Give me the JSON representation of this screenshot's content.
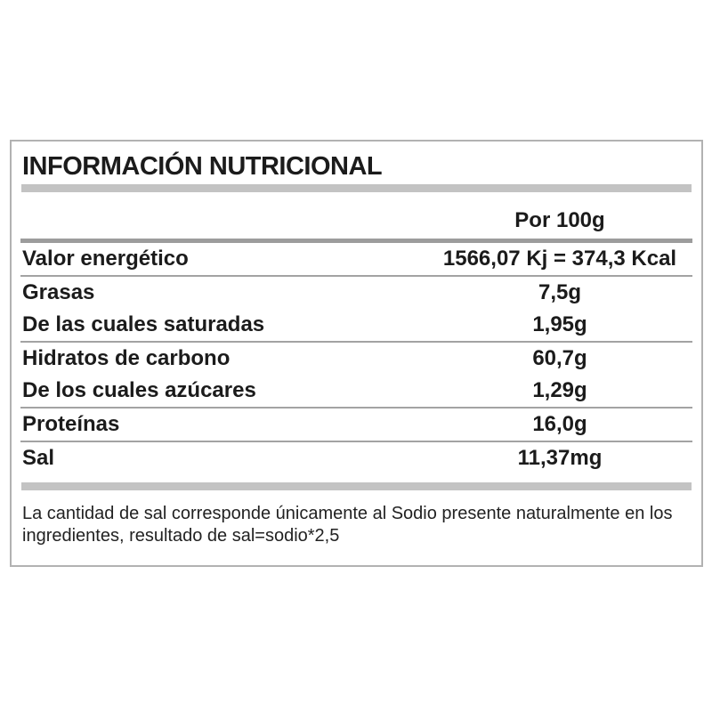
{
  "label": {
    "title": "INFORMACIÓN NUTRICIONAL",
    "column_header": "Por 100g",
    "rows": [
      {
        "name": "Valor energético",
        "value": "1566,07 Kj = 374,3 Kcal"
      },
      {
        "name": "Grasas",
        "value": "7,5g"
      },
      {
        "name": "De las cuales saturadas",
        "value": "1,95g"
      },
      {
        "name": "Hidratos de carbono",
        "value": "60,7g"
      },
      {
        "name": "De los cuales azúcares",
        "value": "1,29g"
      },
      {
        "name": "Proteínas",
        "value": "16,0g"
      },
      {
        "name": "Sal",
        "value": "11,37mg"
      }
    ],
    "footnote_lines": [
      "La cantidad de sal corresponde únicamente al Sodio presente naturalmente en los",
      "ingredientes, resultado de sal=sodio*2,5"
    ],
    "colors": {
      "text": "#1a1a1a",
      "border": "#b2b2b2",
      "thick_bar": "#c3c3c3",
      "divider": "#9c9c9c"
    }
  }
}
